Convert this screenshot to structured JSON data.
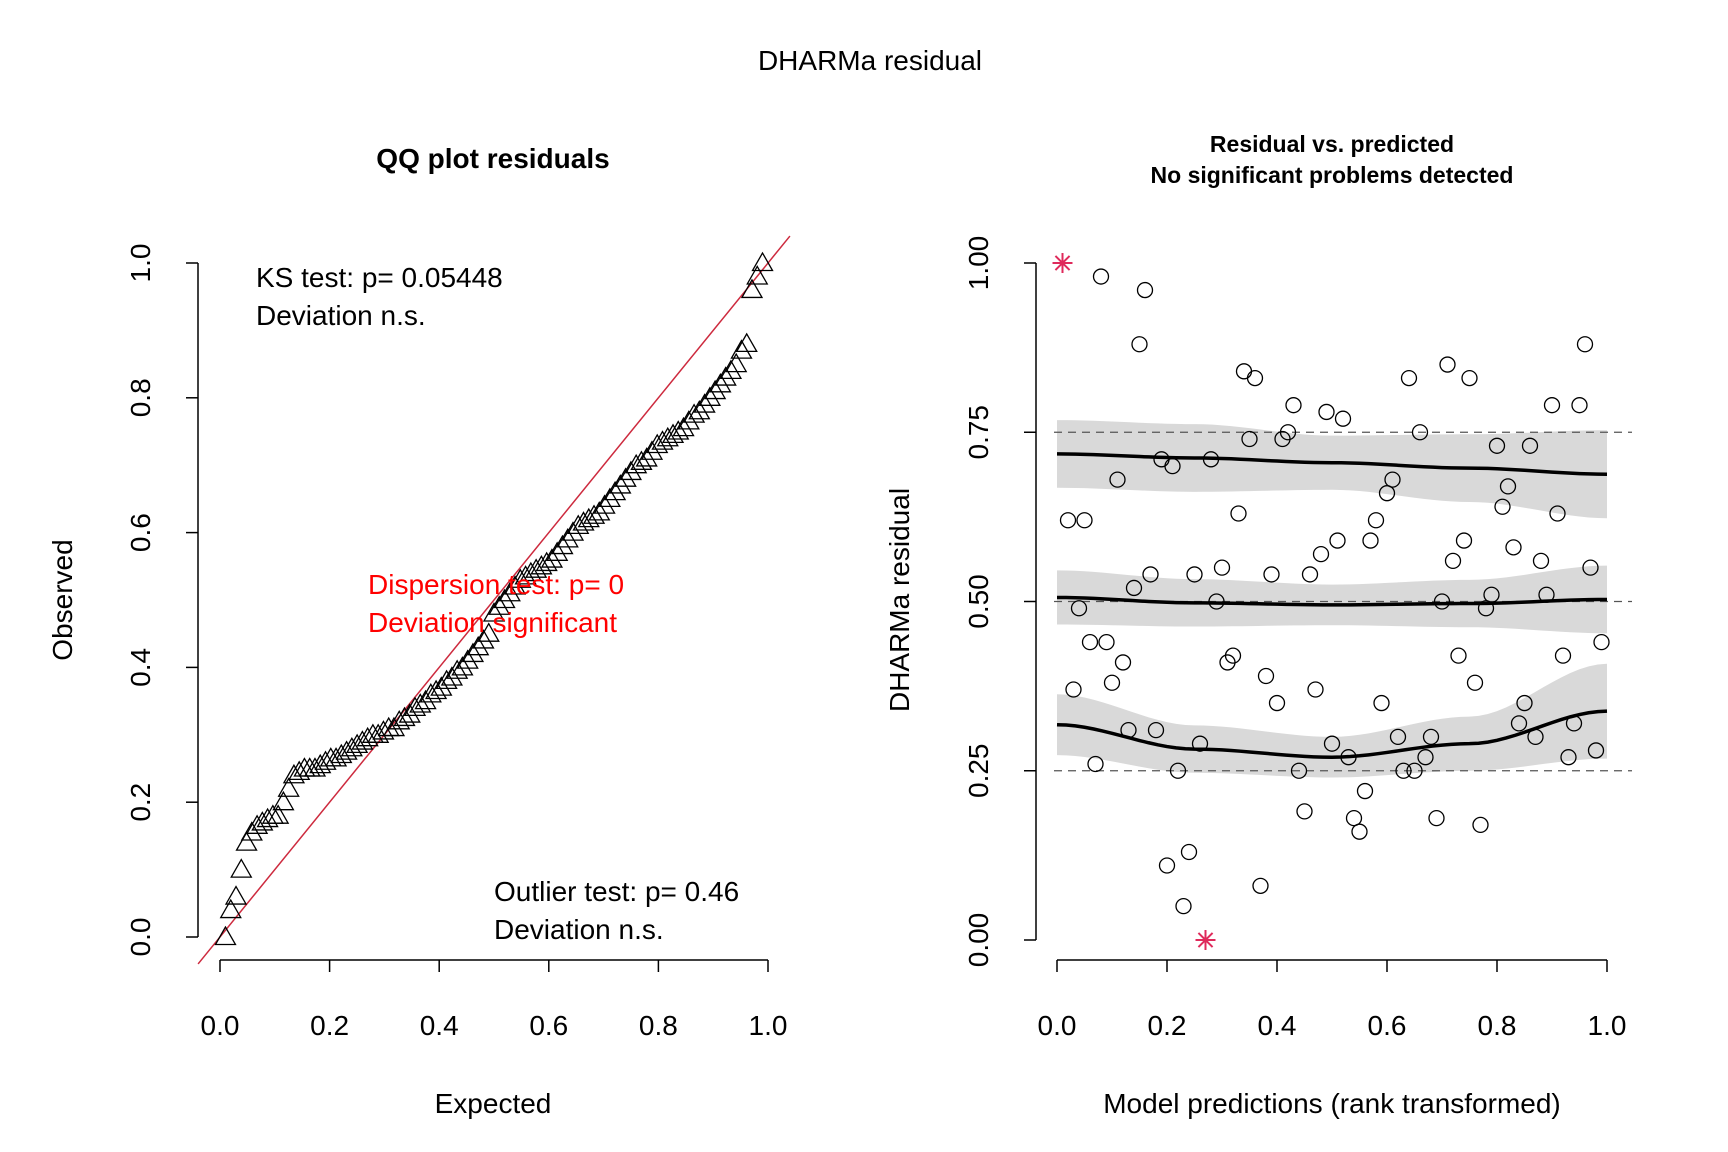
{
  "figure_title": "DHARMa residual",
  "colors": {
    "ref_line": "#cd2a3e",
    "dispersion_text": "#ff0000",
    "outlier_star": "#df2a5b",
    "band": "#d9d9d9",
    "dash": "#555555"
  },
  "chart_data": [
    {
      "type": "scatter",
      "title": "QQ plot residuals",
      "xlabel": "Expected",
      "ylabel": "Observed",
      "xlim": [
        0,
        1
      ],
      "ylim": [
        0,
        1
      ],
      "x_ticks": [
        "0.0",
        "0.2",
        "0.4",
        "0.6",
        "0.8",
        "1.0"
      ],
      "y_ticks": [
        "0.0",
        "0.2",
        "0.4",
        "0.6",
        "0.8",
        "1.0"
      ],
      "marker": "triangle",
      "reference_line": {
        "from": [
          0,
          0
        ],
        "to": [
          1,
          1
        ]
      },
      "annotations": {
        "ks": [
          "KS test: p= 0.05448",
          "Deviation  n.s."
        ],
        "dispersion": [
          "Dispersion test: p= 0",
          "Deviation  significant"
        ],
        "outlier": [
          "Outlier test: p= 0.46",
          "Deviation  n.s."
        ]
      },
      "x_range_for_points": [
        0.01,
        0.99
      ],
      "observed_sorted": [
        0.0,
        0.04,
        0.06,
        0.1,
        0.14,
        0.155,
        0.165,
        0.17,
        0.175,
        0.18,
        0.18,
        0.2,
        0.22,
        0.24,
        0.245,
        0.25,
        0.25,
        0.25,
        0.255,
        0.26,
        0.265,
        0.265,
        0.27,
        0.275,
        0.28,
        0.285,
        0.29,
        0.295,
        0.3,
        0.3,
        0.305,
        0.31,
        0.31,
        0.32,
        0.325,
        0.33,
        0.34,
        0.345,
        0.35,
        0.36,
        0.365,
        0.37,
        0.38,
        0.385,
        0.395,
        0.4,
        0.41,
        0.42,
        0.43,
        0.44,
        0.45,
        0.48,
        0.49,
        0.5,
        0.51,
        0.52,
        0.53,
        0.535,
        0.54,
        0.545,
        0.55,
        0.555,
        0.56,
        0.57,
        0.58,
        0.59,
        0.6,
        0.61,
        0.615,
        0.62,
        0.625,
        0.63,
        0.64,
        0.65,
        0.66,
        0.67,
        0.68,
        0.69,
        0.7,
        0.705,
        0.71,
        0.72,
        0.73,
        0.735,
        0.74,
        0.745,
        0.75,
        0.755,
        0.765,
        0.775,
        0.78,
        0.79,
        0.8,
        0.81,
        0.82,
        0.83,
        0.84,
        0.85,
        0.87,
        0.88,
        0.96,
        0.98,
        1.0
      ]
    },
    {
      "type": "scatter",
      "title_lines": [
        "Residual vs. predicted",
        "No significant problems detected"
      ],
      "xlabel": "Model predictions (rank transformed)",
      "ylabel": "DHARMa residual",
      "xlim": [
        0,
        1
      ],
      "ylim": [
        0,
        1
      ],
      "x_ticks": [
        "0.0",
        "0.2",
        "0.4",
        "0.6",
        "0.8",
        "1.0"
      ],
      "y_ticks": [
        "0.00",
        "0.25",
        "0.50",
        "0.75",
        "1.00"
      ],
      "reference_lines": [
        0.25,
        0.5,
        0.75
      ],
      "points": [
        [
          0.02,
          0.62
        ],
        [
          0.03,
          0.37
        ],
        [
          0.04,
          0.49
        ],
        [
          0.05,
          0.62
        ],
        [
          0.06,
          0.44
        ],
        [
          0.07,
          0.26
        ],
        [
          0.08,
          0.98
        ],
        [
          0.09,
          0.44
        ],
        [
          0.1,
          0.38
        ],
        [
          0.11,
          0.68
        ],
        [
          0.12,
          0.41
        ],
        [
          0.13,
          0.31
        ],
        [
          0.14,
          0.52
        ],
        [
          0.15,
          0.88
        ],
        [
          0.16,
          0.96
        ],
        [
          0.17,
          0.54
        ],
        [
          0.18,
          0.31
        ],
        [
          0.19,
          0.71
        ],
        [
          0.2,
          0.11
        ],
        [
          0.21,
          0.7
        ],
        [
          0.22,
          0.25
        ],
        [
          0.23,
          0.05
        ],
        [
          0.24,
          0.13
        ],
        [
          0.25,
          0.54
        ],
        [
          0.26,
          0.29
        ],
        [
          0.28,
          0.71
        ],
        [
          0.29,
          0.5
        ],
        [
          0.3,
          0.55
        ],
        [
          0.31,
          0.41
        ],
        [
          0.32,
          0.42
        ],
        [
          0.33,
          0.63
        ],
        [
          0.34,
          0.84
        ],
        [
          0.35,
          0.74
        ],
        [
          0.36,
          0.83
        ],
        [
          0.37,
          0.08
        ],
        [
          0.38,
          0.39
        ],
        [
          0.39,
          0.54
        ],
        [
          0.4,
          0.35
        ],
        [
          0.41,
          0.74
        ],
        [
          0.42,
          0.75
        ],
        [
          0.43,
          0.79
        ],
        [
          0.44,
          0.25
        ],
        [
          0.45,
          0.19
        ],
        [
          0.46,
          0.54
        ],
        [
          0.47,
          0.37
        ],
        [
          0.48,
          0.57
        ],
        [
          0.49,
          0.78
        ],
        [
          0.5,
          0.29
        ],
        [
          0.51,
          0.59
        ],
        [
          0.52,
          0.77
        ],
        [
          0.53,
          0.27
        ],
        [
          0.54,
          0.18
        ],
        [
          0.55,
          0.16
        ],
        [
          0.56,
          0.22
        ],
        [
          0.57,
          0.59
        ],
        [
          0.58,
          0.62
        ],
        [
          0.59,
          0.35
        ],
        [
          0.6,
          0.66
        ],
        [
          0.61,
          0.68
        ],
        [
          0.62,
          0.3
        ],
        [
          0.63,
          0.25
        ],
        [
          0.64,
          0.83
        ],
        [
          0.65,
          0.25
        ],
        [
          0.66,
          0.75
        ],
        [
          0.67,
          0.27
        ],
        [
          0.68,
          0.3
        ],
        [
          0.69,
          0.18
        ],
        [
          0.7,
          0.5
        ],
        [
          0.71,
          0.85
        ],
        [
          0.72,
          0.56
        ],
        [
          0.73,
          0.42
        ],
        [
          0.74,
          0.59
        ],
        [
          0.75,
          0.83
        ],
        [
          0.76,
          0.38
        ],
        [
          0.77,
          0.17
        ],
        [
          0.78,
          0.49
        ],
        [
          0.79,
          0.51
        ],
        [
          0.8,
          0.73
        ],
        [
          0.81,
          0.64
        ],
        [
          0.82,
          0.67
        ],
        [
          0.83,
          0.58
        ],
        [
          0.84,
          0.32
        ],
        [
          0.85,
          0.35
        ],
        [
          0.86,
          0.73
        ],
        [
          0.87,
          0.3
        ],
        [
          0.88,
          0.56
        ],
        [
          0.89,
          0.51
        ],
        [
          0.9,
          0.79
        ],
        [
          0.91,
          0.63
        ],
        [
          0.92,
          0.42
        ],
        [
          0.93,
          0.27
        ],
        [
          0.94,
          0.32
        ],
        [
          0.95,
          0.79
        ],
        [
          0.96,
          0.88
        ],
        [
          0.97,
          0.55
        ],
        [
          0.98,
          0.28
        ],
        [
          0.99,
          0.44
        ]
      ],
      "outlier_points": [
        [
          0.01,
          1.0
        ],
        [
          0.27,
          0.0
        ]
      ],
      "quantile_curves": [
        {
          "x": [
            0.0,
            0.25,
            0.5,
            0.75,
            1.0
          ],
          "y": [
            0.718,
            0.712,
            0.705,
            0.697,
            0.688
          ],
          "band": [
            0.05,
            0.05,
            0.04,
            0.05,
            0.065
          ]
        },
        {
          "x": [
            0.0,
            0.25,
            0.5,
            0.75,
            1.0
          ],
          "y": [
            0.506,
            0.498,
            0.495,
            0.497,
            0.503
          ],
          "band": [
            0.04,
            0.035,
            0.03,
            0.035,
            0.05
          ]
        },
        {
          "x": [
            0.0,
            0.25,
            0.5,
            0.75,
            1.0
          ],
          "y": [
            0.318,
            0.282,
            0.27,
            0.29,
            0.338
          ],
          "band": [
            0.045,
            0.035,
            0.03,
            0.04,
            0.07
          ]
        }
      ]
    }
  ]
}
